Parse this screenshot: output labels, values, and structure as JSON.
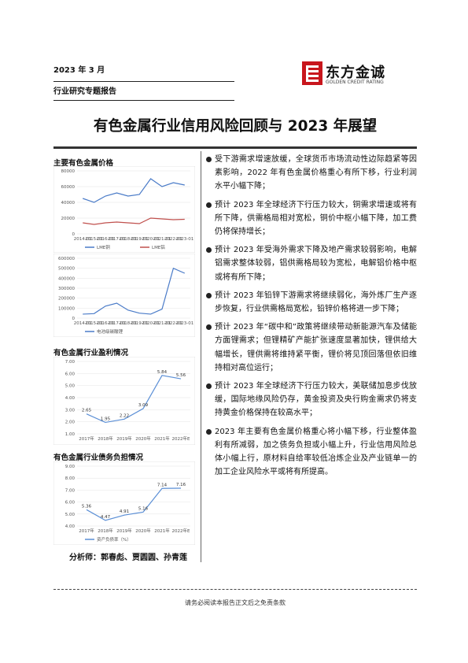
{
  "header": {
    "date": "2023 年 3 月",
    "category": "行业研究专题报告",
    "logo_cn": "东方金诚",
    "logo_en": "GOLDEN CREDIT RATING"
  },
  "title": "有色金属行业信用风险回顾与 2023 年展望",
  "left": {
    "section1": "主要有色金属价格",
    "section2": "有色金属行业盈利情况",
    "section3": "有色金属行业债务负担情况",
    "analysts": "分析师：郭春彪、贾圆圆、孙青莲"
  },
  "chart_data": [
    {
      "type": "line",
      "categories": [
        "2014-01",
        "2015-01",
        "2016-01",
        "2017-01",
        "2018-01",
        "2019-01",
        "2020-01",
        "2021-01",
        "2022-01",
        "2023-01"
      ],
      "series": [
        {
          "name": "LME铜",
          "color": "#4a7bc8",
          "values": [
            45000,
            40000,
            48000,
            52000,
            48000,
            50000,
            70000,
            60000,
            65000,
            62000
          ]
        },
        {
          "name": "LME铝",
          "color": "#c0504d",
          "values": [
            14000,
            12000,
            14000,
            15000,
            14000,
            13000,
            20000,
            19000,
            18000,
            18500
          ]
        }
      ],
      "ylim": [
        0,
        80000
      ],
      "yticks": [
        0,
        20000,
        40000,
        60000,
        80000
      ],
      "legend": true
    },
    {
      "type": "line",
      "categories": [
        "2014-01",
        "2015-01",
        "2016-01",
        "2017-01",
        "2018-01",
        "2019-01",
        "2020-01",
        "2021-01",
        "2022-01",
        "2023-01"
      ],
      "series": [
        {
          "name": "电池级碳酸锂",
          "color": "#4a7bc8",
          "values": [
            40000,
            45000,
            120000,
            150000,
            80000,
            50000,
            40000,
            90000,
            500000,
            450000
          ]
        }
      ],
      "ylim": [
        0,
        600000
      ],
      "yticks": [
        0,
        100000,
        200000,
        300000,
        400000,
        500000,
        600000
      ],
      "legend": true
    },
    {
      "type": "line",
      "categories": [
        "2017年",
        "2018年",
        "2019年",
        "2020年",
        "2021年",
        "2022年E"
      ],
      "series": [
        {
          "name": "有色金属行业利润总额",
          "color": "#5b8fd6",
          "values": [
            2.65,
            1.95,
            2.22,
            3.09,
            5.84,
            5.56
          ]
        }
      ],
      "ylim": [
        1,
        7
      ],
      "yticks": [
        {
          "value": 1,
          "label": "1.00"
        },
        {
          "value": 2,
          "label": "2.00"
        },
        {
          "value": 3,
          "label": "3.00"
        },
        {
          "value": 4,
          "label": "4.00"
        },
        {
          "value": 5,
          "label": "5.00"
        },
        {
          "value": 6,
          "label": "6.00"
        },
        {
          "value": 7,
          "label": "7.00"
        }
      ],
      "data_labels": true,
      "legend": false
    },
    {
      "type": "line",
      "categories": [
        "2017年",
        "2018年",
        "2019年",
        "2020年",
        "2021年",
        "2022年E"
      ],
      "series": [
        {
          "name": "资产负债率（%）",
          "color": "#5b8fd6",
          "values": [
            5.36,
            4.47,
            4.91,
            5.16,
            7.14,
            7.16
          ]
        }
      ],
      "ylim": [
        4,
        9
      ],
      "yticks": [
        {
          "value": 4,
          "label": "4.00"
        },
        {
          "value": 5,
          "label": "5.00"
        },
        {
          "value": 6,
          "label": "6.00"
        },
        {
          "value": 7,
          "label": "7.00"
        },
        {
          "value": 8,
          "label": "8.00"
        },
        {
          "value": 9,
          "label": "9.00"
        }
      ],
      "data_labels": true,
      "legend": true
    }
  ],
  "bullets": [
    "受下游需求增速放缓，全球货币市场流动性边际趋紧等因素影响，2022 年有色金属价格重心有所下移，行业利润水平小幅下降；",
    "预计 2023 年全球经济下行压力较大，铜需求增速或将有所下降，供需格局相对宽松，铜价中枢小幅下降，加工费仍将保持增长；",
    "预计 2023 年受海外需求下降及地产需求较弱影响，电解铝需求整体较弱，铝供需格局较为宽松，电解铝价格中枢或将有所下降；",
    "预计 2023 年铅锌下游需求将继续弱化，海外炼厂生产逐步恢复，行业供需格局宽松，铅锌价格将进一步下降；",
    "预计 2023 年“碳中和”政策将继续带动新能源汽车及储能方面锂需求；但锂精矿产能扩张速度显著加快，锂供给大幅增长，锂供需将维持紧平衡，锂价将见顶回落但依旧维持相对高位运行；",
    "预计 2023 年全球经济下行压力较大，美联储加息步伐放缓，国际地缘风险仍存，黄金投资及央行购金需求仍将支持黄金价格保持在较高水平；",
    "2023 年主要有色金属价格重心将小幅下移，行业整体盈利有所减弱，加之债务负担或小幅上升，行业信用风险总体小幅上行，原材料自给率较低冶炼企业及产业链单一的加工企业风险水平或将有所提高。"
  ],
  "footer": "请务必阅读本报告正文后之免责条款"
}
